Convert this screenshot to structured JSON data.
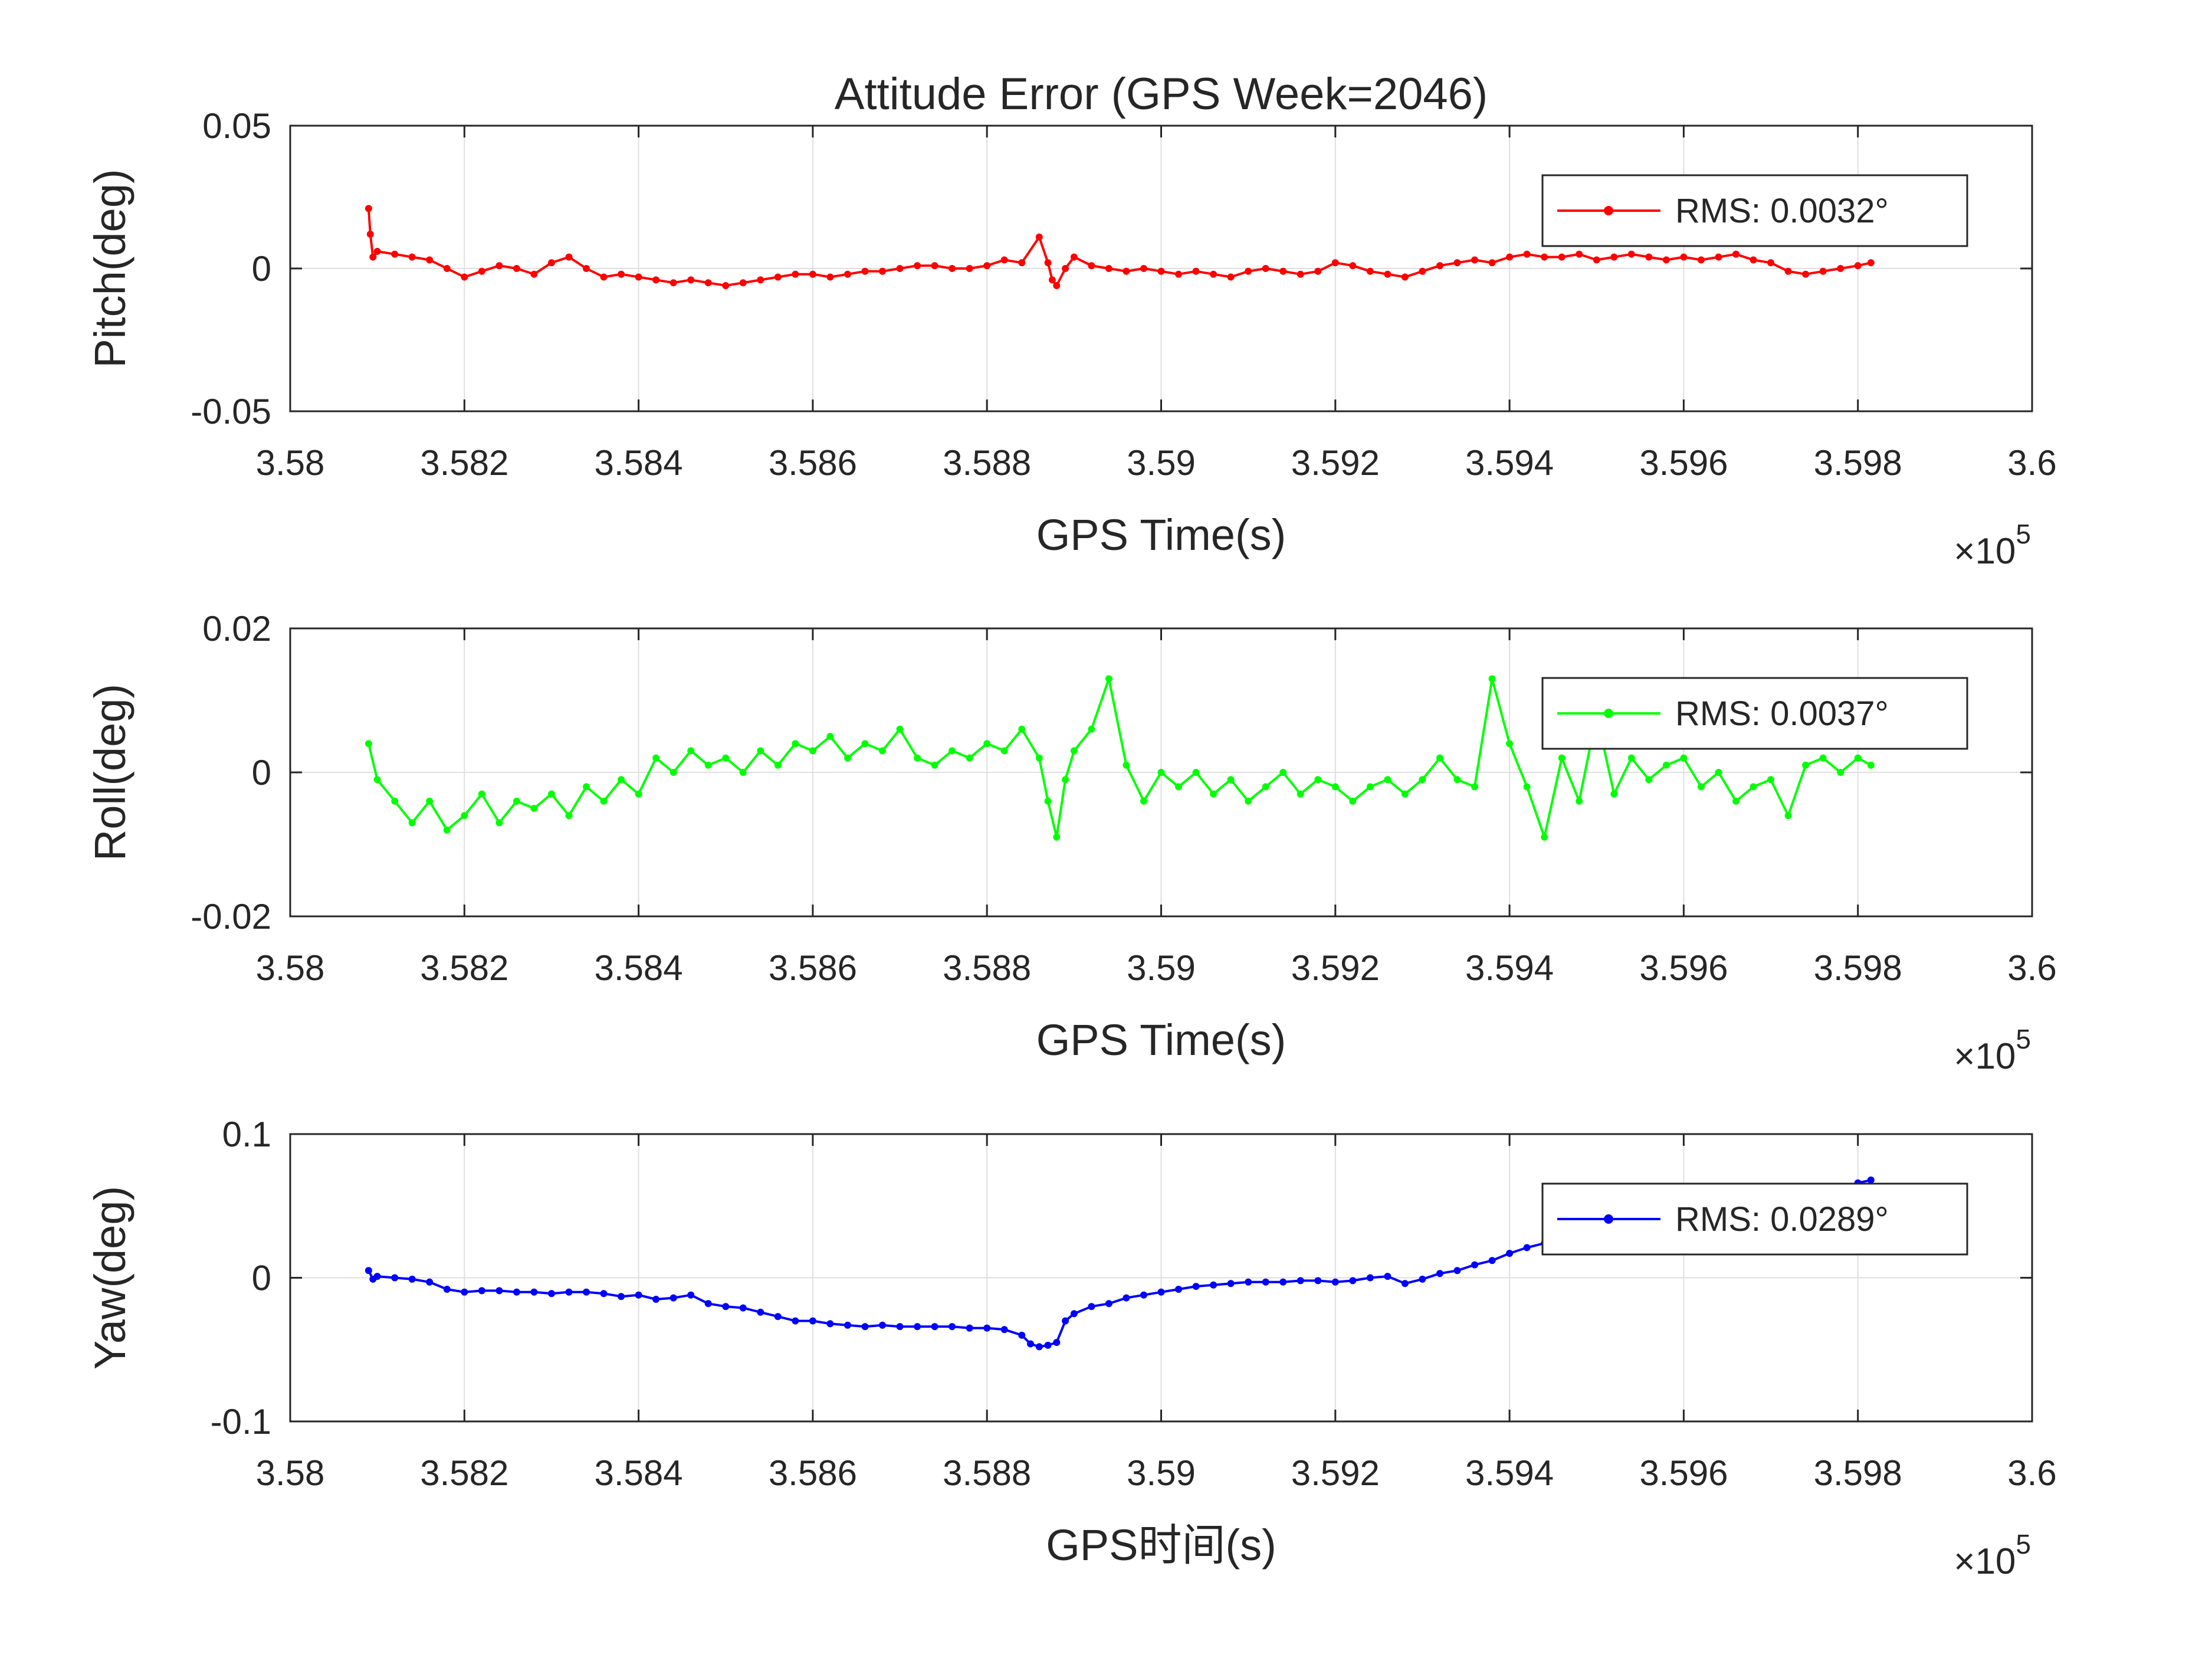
{
  "chart_data": [
    {
      "type": "line",
      "title": "Attitude Error (GPS Week=2046)",
      "xlabel": "GPS Time(s)",
      "ylabel": "Pitch(deg)",
      "xlim": [
        358000,
        360000
      ],
      "ylim": [
        -0.05,
        0.05
      ],
      "x_ticks": [
        358000,
        358200,
        358400,
        358600,
        358800,
        359000,
        359200,
        359400,
        359600,
        359800,
        360000
      ],
      "x_tick_labels": [
        "3.58",
        "3.582",
        "3.584",
        "3.586",
        "3.588",
        "3.59",
        "3.592",
        "3.594",
        "3.596",
        "3.598",
        "3.6"
      ],
      "x_exponent": {
        "base": "×10",
        "power": "5"
      },
      "y_ticks": [
        -0.05,
        0,
        0.05
      ],
      "y_tick_labels": [
        "-0.05",
        "0",
        "0.05"
      ],
      "grid": true,
      "legend_position": "top-right",
      "series": [
        {
          "name": "RMS: 0.0032°",
          "color": "#ff0000",
          "x": [
            358090,
            358092,
            358095,
            358100,
            358120,
            358140,
            358160,
            358180,
            358200,
            358220,
            358240,
            358260,
            358280,
            358300,
            358320,
            358340,
            358360,
            358380,
            358400,
            358420,
            358440,
            358460,
            358480,
            358500,
            358520,
            358540,
            358560,
            358580,
            358600,
            358620,
            358640,
            358660,
            358680,
            358700,
            358720,
            358740,
            358760,
            358780,
            358800,
            358820,
            358840,
            358860,
            358870,
            358875,
            358880,
            358890,
            358900,
            358920,
            358940,
            358960,
            358980,
            359000,
            359020,
            359040,
            359060,
            359080,
            359100,
            359120,
            359140,
            359160,
            359180,
            359200,
            359220,
            359240,
            359260,
            359280,
            359300,
            359320,
            359340,
            359360,
            359380,
            359400,
            359420,
            359440,
            359460,
            359480,
            359500,
            359520,
            359540,
            359560,
            359580,
            359600,
            359620,
            359640,
            359660,
            359680,
            359700,
            359720,
            359740,
            359760,
            359780,
            359800,
            359815
          ],
          "values": [
            0.021,
            0.012,
            0.004,
            0.006,
            0.005,
            0.004,
            0.003,
            0.0,
            -0.003,
            -0.001,
            0.001,
            0.0,
            -0.002,
            0.002,
            0.004,
            0.0,
            -0.003,
            -0.002,
            -0.003,
            -0.004,
            -0.005,
            -0.004,
            -0.005,
            -0.006,
            -0.005,
            -0.004,
            -0.003,
            -0.002,
            -0.002,
            -0.003,
            -0.002,
            -0.001,
            -0.001,
            0.0,
            0.001,
            0.001,
            0.0,
            0.0,
            0.001,
            0.003,
            0.002,
            0.011,
            0.002,
            -0.004,
            -0.006,
            0.0,
            0.004,
            0.001,
            0.0,
            -0.001,
            0.0,
            -0.001,
            -0.002,
            -0.001,
            -0.002,
            -0.003,
            -0.001,
            0.0,
            -0.001,
            -0.002,
            -0.001,
            0.002,
            0.001,
            -0.001,
            -0.002,
            -0.003,
            -0.001,
            0.001,
            0.002,
            0.003,
            0.002,
            0.004,
            0.005,
            0.004,
            0.004,
            0.005,
            0.003,
            0.004,
            0.005,
            0.004,
            0.003,
            0.004,
            0.003,
            0.004,
            0.005,
            0.003,
            0.002,
            -0.001,
            -0.002,
            -0.001,
            0.0,
            0.001,
            0.002
          ]
        }
      ]
    },
    {
      "type": "line",
      "xlabel": "GPS Time(s)",
      "ylabel": "Roll(deg)",
      "xlim": [
        358000,
        360000
      ],
      "ylim": [
        -0.02,
        0.02
      ],
      "x_ticks": [
        358000,
        358200,
        358400,
        358600,
        358800,
        359000,
        359200,
        359400,
        359600,
        359800,
        360000
      ],
      "x_tick_labels": [
        "3.58",
        "3.582",
        "3.584",
        "3.586",
        "3.588",
        "3.59",
        "3.592",
        "3.594",
        "3.596",
        "3.598",
        "3.6"
      ],
      "x_exponent": {
        "base": "×10",
        "power": "5"
      },
      "y_ticks": [
        -0.02,
        0,
        0.02
      ],
      "y_tick_labels": [
        "-0.02",
        "0",
        "0.02"
      ],
      "grid": true,
      "legend_position": "top-right",
      "series": [
        {
          "name": "RMS: 0.0037°",
          "color": "#00ff00",
          "x": [
            358090,
            358100,
            358120,
            358140,
            358160,
            358180,
            358200,
            358220,
            358240,
            358260,
            358280,
            358300,
            358320,
            358340,
            358360,
            358380,
            358400,
            358420,
            358440,
            358460,
            358480,
            358500,
            358520,
            358540,
            358560,
            358580,
            358600,
            358620,
            358640,
            358660,
            358680,
            358700,
            358720,
            358740,
            358760,
            358780,
            358800,
            358820,
            358840,
            358860,
            358870,
            358880,
            358890,
            358900,
            358920,
            358940,
            358960,
            358980,
            359000,
            359020,
            359040,
            359060,
            359080,
            359100,
            359120,
            359140,
            359160,
            359180,
            359200,
            359220,
            359240,
            359260,
            359280,
            359300,
            359320,
            359340,
            359360,
            359380,
            359400,
            359420,
            359440,
            359460,
            359480,
            359500,
            359520,
            359540,
            359560,
            359580,
            359600,
            359620,
            359640,
            359660,
            359680,
            359700,
            359720,
            359740,
            359760,
            359780,
            359800,
            359815
          ],
          "values": [
            0.004,
            -0.001,
            -0.004,
            -0.007,
            -0.004,
            -0.008,
            -0.006,
            -0.003,
            -0.007,
            -0.004,
            -0.005,
            -0.003,
            -0.006,
            -0.002,
            -0.004,
            -0.001,
            -0.003,
            0.002,
            0.0,
            0.003,
            0.001,
            0.002,
            0.0,
            0.003,
            0.001,
            0.004,
            0.003,
            0.005,
            0.002,
            0.004,
            0.003,
            0.006,
            0.002,
            0.001,
            0.003,
            0.002,
            0.004,
            0.003,
            0.006,
            0.002,
            -0.004,
            -0.009,
            -0.001,
            0.003,
            0.006,
            0.013,
            0.001,
            -0.004,
            0.0,
            -0.002,
            0.0,
            -0.003,
            -0.001,
            -0.004,
            -0.002,
            0.0,
            -0.003,
            -0.001,
            -0.002,
            -0.004,
            -0.002,
            -0.001,
            -0.003,
            -0.001,
            0.002,
            -0.001,
            -0.002,
            0.013,
            0.004,
            -0.002,
            -0.009,
            0.002,
            -0.004,
            0.008,
            -0.003,
            0.002,
            -0.001,
            0.001,
            0.002,
            -0.002,
            0.0,
            -0.004,
            -0.002,
            -0.001,
            -0.006,
            0.001,
            0.002,
            0.0,
            0.002,
            0.001
          ]
        }
      ]
    },
    {
      "type": "line",
      "xlabel": "GPS时间(s)",
      "ylabel": "Yaw(deg)",
      "xlim": [
        358000,
        360000
      ],
      "ylim": [
        -0.1,
        0.1
      ],
      "x_ticks": [
        358000,
        358200,
        358400,
        358600,
        358800,
        359000,
        359200,
        359400,
        359600,
        359800,
        360000
      ],
      "x_tick_labels": [
        "3.58",
        "3.582",
        "3.584",
        "3.586",
        "3.588",
        "3.59",
        "3.592",
        "3.594",
        "3.596",
        "3.598",
        "3.6"
      ],
      "x_exponent": {
        "base": "×10",
        "power": "5"
      },
      "y_ticks": [
        -0.1,
        0,
        0.1
      ],
      "y_tick_labels": [
        "-0.1",
        "0",
        "0.1"
      ],
      "grid": true,
      "legend_position": "top-right",
      "series": [
        {
          "name": "RMS: 0.0289°",
          "color": "#0000ff",
          "x": [
            358090,
            358095,
            358100,
            358120,
            358140,
            358160,
            358180,
            358200,
            358220,
            358240,
            358260,
            358280,
            358300,
            358320,
            358340,
            358360,
            358380,
            358400,
            358420,
            358440,
            358460,
            358480,
            358500,
            358520,
            358540,
            358560,
            358580,
            358600,
            358620,
            358640,
            358660,
            358680,
            358700,
            358720,
            358740,
            358760,
            358780,
            358800,
            358820,
            358840,
            358850,
            358860,
            358870,
            358880,
            358890,
            358900,
            358920,
            358940,
            358960,
            358980,
            359000,
            359020,
            359040,
            359060,
            359080,
            359100,
            359120,
            359140,
            359160,
            359180,
            359200,
            359220,
            359240,
            359260,
            359280,
            359300,
            359320,
            359340,
            359360,
            359380,
            359400,
            359420,
            359440,
            359460,
            359480,
            359500,
            359520,
            359540,
            359560,
            359580,
            359600,
            359620,
            359640,
            359660,
            359680,
            359700,
            359720,
            359740,
            359760,
            359780,
            359800,
            359815
          ],
          "values": [
            0.005,
            -0.001,
            0.001,
            0.0,
            -0.001,
            -0.003,
            -0.008,
            -0.01,
            -0.009,
            -0.009,
            -0.01,
            -0.01,
            -0.011,
            -0.01,
            -0.01,
            -0.011,
            -0.013,
            -0.012,
            -0.015,
            -0.014,
            -0.012,
            -0.018,
            -0.02,
            -0.021,
            -0.024,
            -0.027,
            -0.03,
            -0.03,
            -0.032,
            -0.033,
            -0.034,
            -0.033,
            -0.034,
            -0.034,
            -0.034,
            -0.034,
            -0.035,
            -0.035,
            -0.036,
            -0.04,
            -0.046,
            -0.048,
            -0.047,
            -0.045,
            -0.03,
            -0.025,
            -0.02,
            -0.018,
            -0.014,
            -0.012,
            -0.01,
            -0.008,
            -0.006,
            -0.005,
            -0.004,
            -0.003,
            -0.003,
            -0.003,
            -0.002,
            -0.002,
            -0.003,
            -0.002,
            0.0,
            0.001,
            -0.004,
            -0.001,
            0.003,
            0.005,
            0.009,
            0.012,
            0.017,
            0.021,
            0.024,
            0.026,
            0.027,
            0.028,
            0.029,
            0.032,
            0.034,
            0.036,
            0.038,
            0.04,
            0.043,
            0.046,
            0.049,
            0.052,
            0.055,
            0.058,
            0.061,
            0.063,
            0.066,
            0.068
          ]
        }
      ]
    }
  ]
}
